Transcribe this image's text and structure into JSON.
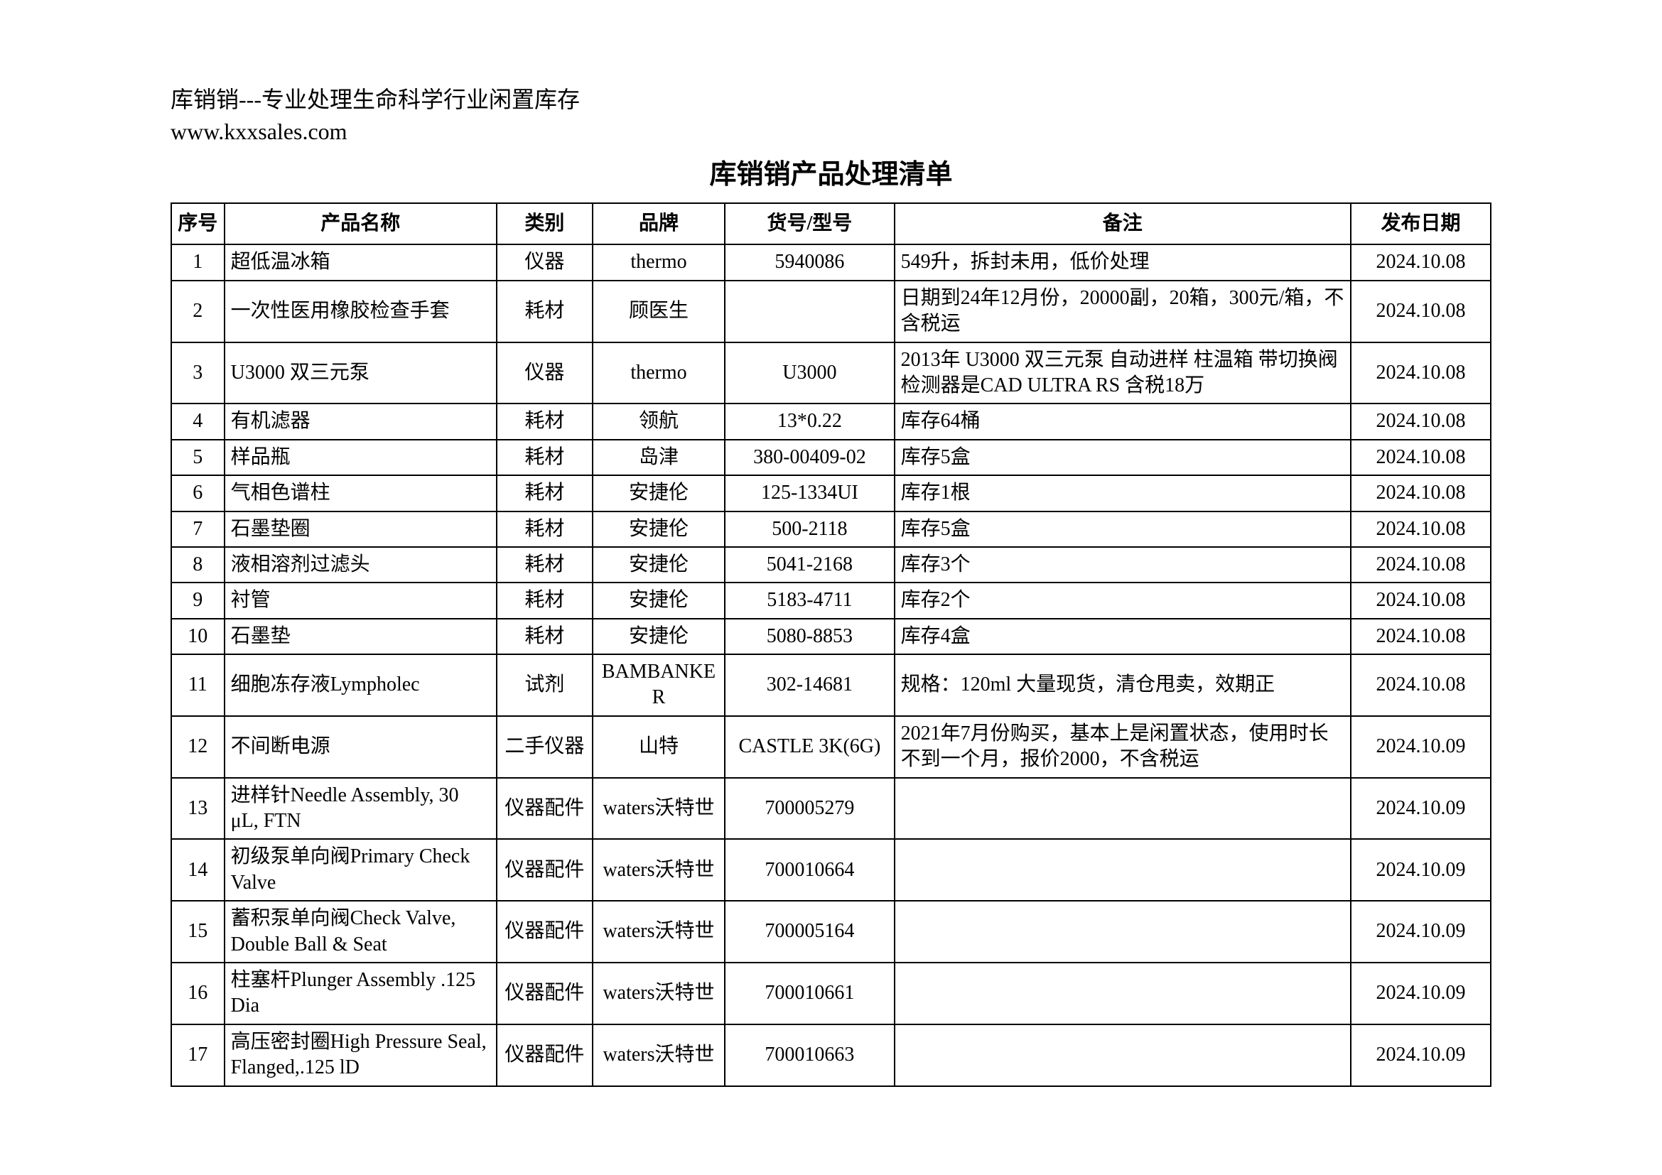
{
  "header": {
    "line1": "库销销---专业处理生命科学行业闲置库存",
    "line2": "www.kxxsales.com",
    "title": "库销销产品处理清单"
  },
  "columns": {
    "seq": "序号",
    "name": "产品名称",
    "cat": "类别",
    "brand": "品牌",
    "model": "货号/型号",
    "note": "备注",
    "date": "发布日期"
  },
  "rows": [
    {
      "seq": "1",
      "name": "超低温冰箱",
      "cat": "仪器",
      "brand": "thermo",
      "model": "5940086",
      "note": "549升，拆封未用，低价处理",
      "date": "2024.10.08"
    },
    {
      "seq": "2",
      "name": "一次性医用橡胶检查手套",
      "cat": "耗材",
      "brand": "顾医生",
      "model": "",
      "note": "日期到24年12月份，20000副，20箱，300元/箱，不含税运",
      "date": "2024.10.08"
    },
    {
      "seq": "3",
      "name": "U3000 双三元泵",
      "cat": "仪器",
      "brand": "thermo",
      "model": "U3000",
      "note": " 2013年 U3000 双三元泵 自动进样 柱温箱 带切换阀 检测器是CAD ULTRA RS 含税18万",
      "date": "2024.10.08"
    },
    {
      "seq": "4",
      "name": "有机滤器",
      "cat": "耗材",
      "brand": "领航",
      "model": "13*0.22",
      "note": " 库存64桶",
      "date": "2024.10.08"
    },
    {
      "seq": "5",
      "name": "样品瓶",
      "cat": "耗材",
      "brand": "岛津",
      "model": "380-00409-02",
      "note": "库存5盒",
      "date": "2024.10.08"
    },
    {
      "seq": "6",
      "name": "气相色谱柱",
      "cat": "耗材",
      "brand": "安捷伦",
      "model": "125-1334UI",
      "note": "库存1根",
      "date": "2024.10.08"
    },
    {
      "seq": "7",
      "name": "石墨垫圈",
      "cat": "耗材",
      "brand": "安捷伦",
      "model": "500-2118",
      "note": "库存5盒",
      "date": "2024.10.08"
    },
    {
      "seq": "8",
      "name": "液相溶剂过滤头",
      "cat": "耗材",
      "brand": "安捷伦",
      "model": "5041-2168",
      "note": "库存3个",
      "date": "2024.10.08"
    },
    {
      "seq": "9",
      "name": "衬管",
      "cat": "耗材",
      "brand": "安捷伦",
      "model": "5183-4711",
      "note": "库存2个",
      "date": "2024.10.08"
    },
    {
      "seq": "10",
      "name": "石墨垫",
      "cat": "耗材",
      "brand": "安捷伦",
      "model": "5080-8853",
      "note": "库存4盒",
      "date": "2024.10.08"
    },
    {
      "seq": "11",
      "name": "细胞冻存液Lympholec",
      "cat": "试剂",
      "brand": "BAMBANKER",
      "model": "302-14681",
      "note": "规格：120ml 大量现货，清仓甩卖，效期正",
      "date": "2024.10.08"
    },
    {
      "seq": "12",
      "name": "不间断电源",
      "cat": "二手仪器",
      "brand": "山特",
      "model": "CASTLE 3K(6G)",
      "note": "2021年7月份购买，基本上是闲置状态，使用时长不到一个月，报价2000，不含税运",
      "date": "2024.10.09"
    },
    {
      "seq": "13",
      "name": "进样针Needle Assembly, 30 μL, FTN",
      "cat": "仪器配件",
      "brand": "waters沃特世",
      "model": "700005279",
      "note": "",
      "date": "2024.10.09"
    },
    {
      "seq": "14",
      "name": "初级泵单向阀Primary Check Valve",
      "cat": "仪器配件",
      "brand": "waters沃特世",
      "model": "700010664",
      "note": "",
      "date": "2024.10.09"
    },
    {
      "seq": "15",
      "name": "蓄积泵单向阀Check Valve, Double Ball & Seat",
      "cat": "仪器配件",
      "brand": "waters沃特世",
      "model": "700005164",
      "note": "",
      "date": "2024.10.09"
    },
    {
      "seq": "16",
      "name": "柱塞杆Plunger Assembly .125 Dia",
      "cat": "仪器配件",
      "brand": "waters沃特世",
      "model": "700010661",
      "note": "",
      "date": "2024.10.09"
    },
    {
      "seq": "17",
      "name": "高压密封圈High Pressure Seal, Flanged,.125 lD",
      "cat": "仪器配件",
      "brand": "waters沃特世",
      "model": "700010663",
      "note": "",
      "date": "2024.10.09"
    }
  ]
}
